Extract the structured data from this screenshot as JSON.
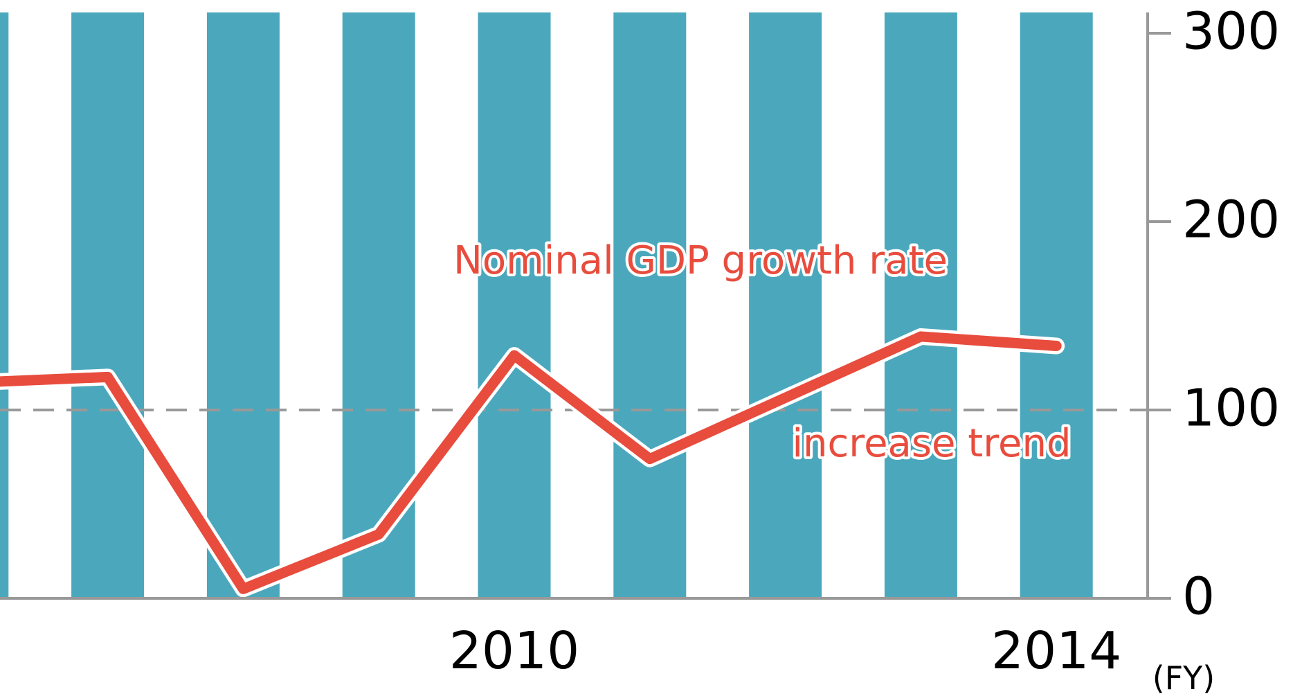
{
  "chart_data": {
    "type": "bar_line",
    "categories": [
      null,
      null,
      null,
      null,
      "2010",
      null,
      null,
      null,
      "2014"
    ],
    "x_label": "(FY)",
    "series": [
      {
        "type": "bar",
        "color": "#4ba8bc",
        "values": [
          320,
          320,
          320,
          320,
          320,
          320,
          320,
          320,
          320
        ]
      },
      {
        "type": "line",
        "color": "#e84c3d",
        "values": [
          114.5,
          117.5,
          5,
          34,
          129,
          74,
          106.5,
          139,
          134
        ]
      }
    ],
    "annotations": [
      "Nominal GDP growth rate",
      "increase trend"
    ],
    "reference_line": 100,
    "ylim": [
      0,
      300
    ],
    "yticks": [
      0,
      100,
      200,
      300
    ]
  }
}
